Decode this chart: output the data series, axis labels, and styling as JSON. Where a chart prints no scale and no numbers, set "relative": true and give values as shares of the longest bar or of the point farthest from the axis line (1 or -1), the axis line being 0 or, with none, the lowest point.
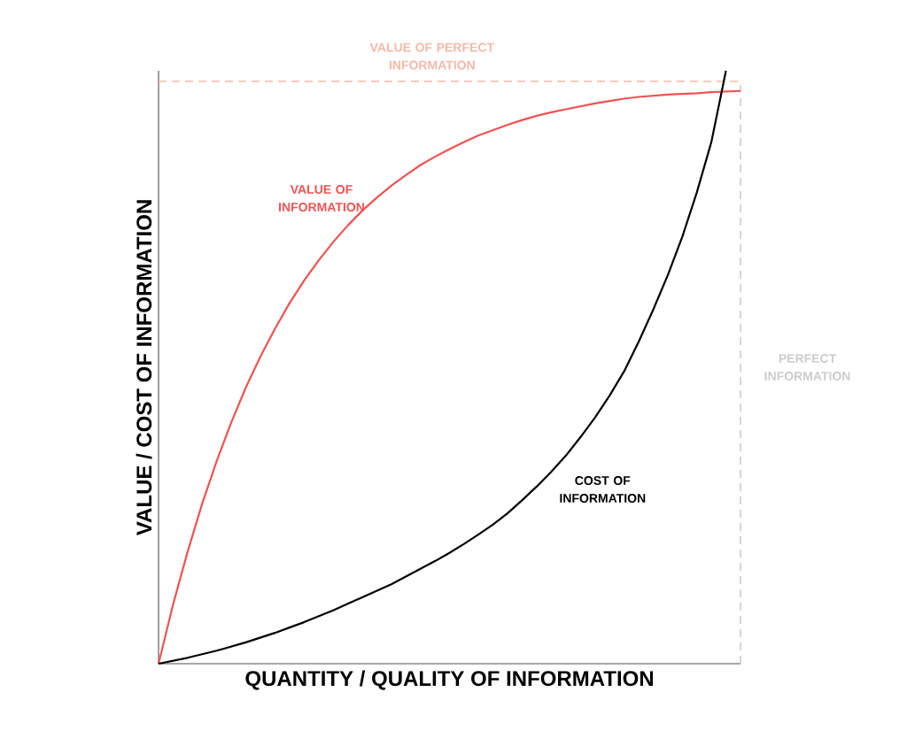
{
  "chart_data": {
    "type": "line",
    "relative": true,
    "xlabel": "QUANTITY / QUALITY OF INFORMATION",
    "ylabel": "VALUE / COST OF INFORMATION",
    "categories": [
      null,
      null,
      null,
      null,
      null,
      null,
      null,
      null,
      null,
      null,
      null,
      null,
      null,
      null,
      null,
      null,
      null,
      null,
      null,
      null,
      null,
      null,
      null,
      null,
      null,
      null,
      null,
      null,
      null,
      null,
      null,
      null,
      null,
      null,
      null,
      null,
      null,
      null,
      null,
      null,
      null
    ],
    "series": [
      {
        "name": "VALUE OF INFORMATION",
        "color": "#f05252",
        "values": [
          0,
          0.1,
          0.189,
          0.27,
          0.342,
          0.407,
          0.466,
          0.518,
          0.565,
          0.608,
          0.646,
          0.68,
          0.711,
          0.739,
          0.764,
          0.786,
          0.806,
          0.824,
          0.841,
          0.855,
          0.868,
          0.88,
          0.891,
          0.9,
          0.909,
          0.917,
          0.924,
          0.93,
          0.935,
          0.94,
          0.945,
          0.949,
          0.953,
          0.956,
          0.958,
          0.96,
          0.961,
          0.962,
          0.964,
          0.965,
          0.966
        ]
      },
      {
        "name": "COST OF INFORMATION",
        "color": "#000000",
        "values": [
          0,
          0.005,
          0.01,
          0.016,
          0.022,
          0.029,
          0.036,
          0.044,
          0.052,
          0.061,
          0.07,
          0.08,
          0.09,
          0.101,
          0.112,
          0.123,
          0.134,
          0.147,
          0.16,
          0.173,
          0.187,
          0.202,
          0.218,
          0.235,
          0.254,
          0.276,
          0.299,
          0.324,
          0.351,
          0.382,
          0.415,
          0.452,
          0.493,
          0.543,
          0.597,
          0.655,
          0.72,
          0.795,
          0.88,
          1.0,
          null
        ]
      }
    ],
    "ref_lines": [
      {
        "axis": "y",
        "value": 0.982,
        "label": "VALUE OF PERFECT INFORMATION",
        "color": "#f7b8a8",
        "line_style": "dashed"
      },
      {
        "axis": "x",
        "label": "PERFECT INFORMATION",
        "color": "#cccccc",
        "line_style": "dashed"
      }
    ]
  }
}
